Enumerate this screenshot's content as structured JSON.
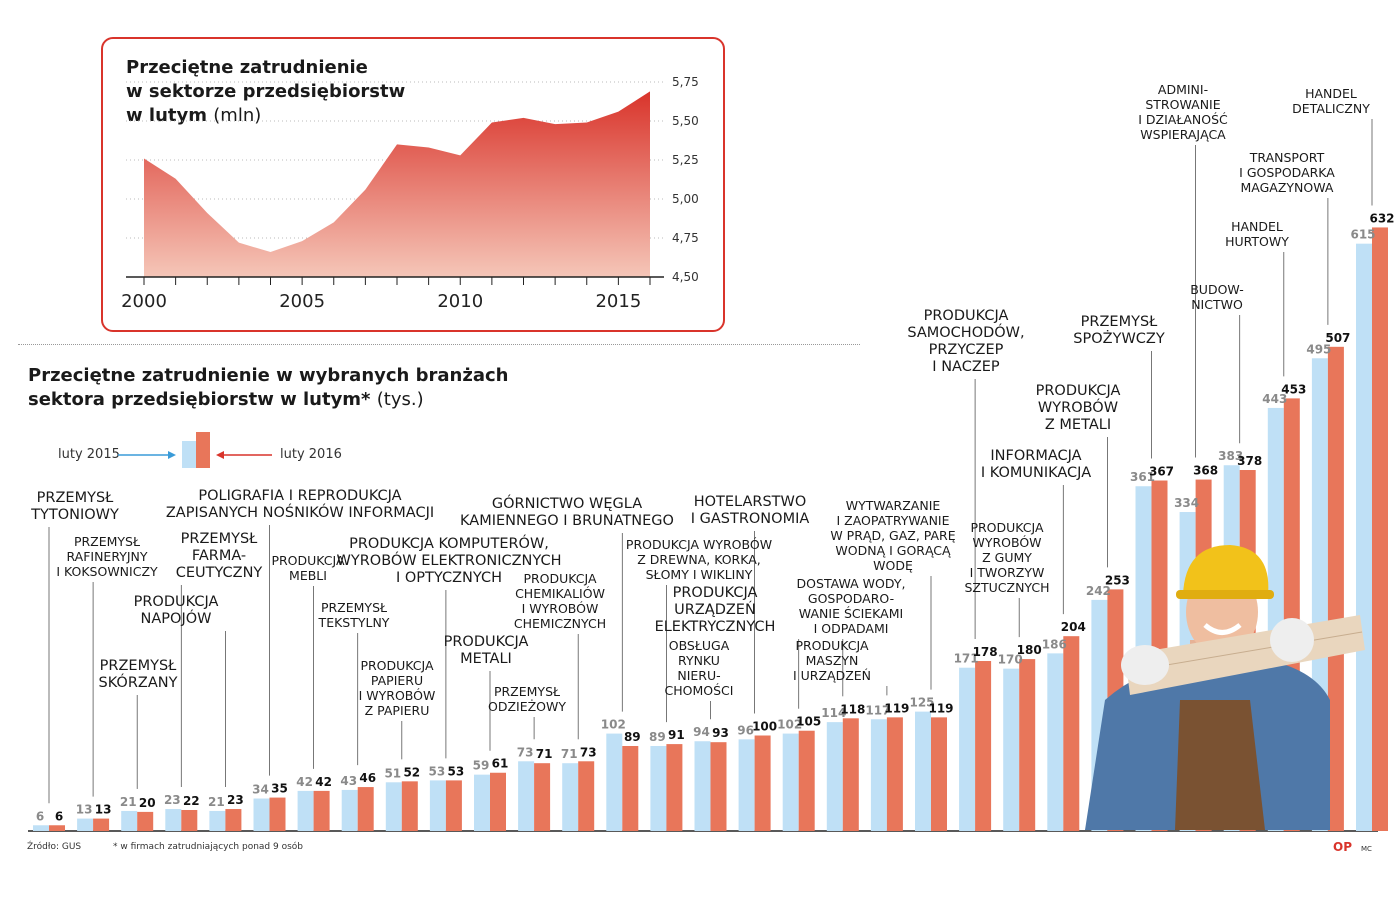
{
  "area_chart": {
    "title_line1": "Przeciętne zatrudnienie",
    "title_line2": "w sektorze przedsiębiorstw",
    "title_line3": "w lutym",
    "unit": "(mln)"
  },
  "bar_chart": {
    "title_line1": "Przeciętne zatrudnienie w wybranych branżach",
    "title_line2": "sektora przedsiębiorstw w lutym*",
    "unit": "(tys.)",
    "legend_2015": "luty 2015",
    "legend_2016": "luty 2016"
  },
  "colors": {
    "red": "#d9342b",
    "blue": "#bfe0f6",
    "orange": "#e8765a",
    "area_top": "#d9342b",
    "area_bottom": "#f5c6b8"
  },
  "footer": {
    "source": "Źródło: GUS",
    "note": "* w firmach zatrudniających ponad 9 osób",
    "logo": "OP",
    "author": "MC"
  },
  "chart_data": [
    {
      "type": "area",
      "title": "Przeciętne zatrudnienie w sektorze przedsiębiorstw w lutym (mln)",
      "x": [
        2000,
        2001,
        2002,
        2003,
        2004,
        2005,
        2006,
        2007,
        2008,
        2009,
        2010,
        2011,
        2012,
        2013,
        2014,
        2015,
        2016
      ],
      "values": [
        5.26,
        5.13,
        4.91,
        4.72,
        4.66,
        4.73,
        4.85,
        5.06,
        5.35,
        5.33,
        5.28,
        5.49,
        5.52,
        5.48,
        5.49,
        5.56,
        5.69
      ],
      "x_ticks": [
        "2000",
        "2005",
        "2010",
        "2015"
      ],
      "y_ticks": [
        "5,75",
        "5,50",
        "5,25",
        "5,00",
        "4,75",
        "4,50"
      ],
      "ylim": [
        4.5,
        5.75
      ]
    },
    {
      "type": "bar",
      "title": "Przeciętne zatrudnienie w wybranych branżach sektora przedsiębiorstw w lutym* (tys.)",
      "series": [
        {
          "name": "luty 2015",
          "values": [
            6,
            13,
            21,
            23,
            21,
            34,
            42,
            43,
            51,
            53,
            59,
            73,
            71,
            102,
            89,
            94,
            96,
            102,
            114,
            117,
            125,
            171,
            170,
            186,
            242,
            361,
            334,
            383,
            443,
            495,
            615
          ]
        },
        {
          "name": "luty 2016",
          "values": [
            6,
            13,
            20,
            22,
            23,
            35,
            42,
            46,
            52,
            53,
            61,
            71,
            73,
            89,
            91,
            93,
            100,
            105,
            118,
            119,
            119,
            178,
            180,
            204,
            253,
            367,
            368,
            378,
            453,
            507,
            632
          ]
        }
      ],
      "categories": [
        "Przemysł tytoniowy",
        "Przemysł rafineryjny i koksowniczy",
        "Przemysł skórzany",
        "Przemysł farmaceutyczny",
        "Produkcja napojów",
        "Poligrafia i reprodukcja zapisanych nośników informacji",
        "Produkcja mebli",
        "Przemysł tekstylny",
        "Produkcja papieru i wyrobów z papieru",
        "Produkcja komputerów, wyrobów elektronicznych i optycznych",
        "Produkcja metali",
        "Przemysł odzieżowy",
        "Produkcja chemikaliów i wyrobów chemicznych",
        "Górnictwo węgla kamiennego i brunatnego",
        "Produkcja wyrobów z drewna, korka, słomy i wikliny",
        "Obsługa rynku nieruchomości",
        "Hotelarstwo i gastronomia",
        "Produkcja urządzeń elektrycznych",
        "Dostawa wody, gospodarowanie ściekami i odpadami",
        "Produkcja maszyn i urządzeń",
        "Wytwarzanie i zaopatrywanie w prąd, gaz, parę wodną i gorącą wodę",
        "Produkcja samochodów, przyczep i naczep",
        "Produkcja wyrobów z gumy i tworzyw sztucznych",
        "Informacja i komunikacja",
        "Produkcja wyrobów z metali",
        "Przemysł spożywczy",
        "Administrowanie i działalność wspierająca",
        "Budownictwo",
        "Handel hurtowy",
        "Transport i gospodarka magazynowa",
        "Handel detaliczny"
      ],
      "ylim": [
        0,
        640
      ]
    }
  ],
  "labels": [
    {
      "lines": [
        "PRZEMYSŁ",
        "TYTONIOWY"
      ]
    },
    {
      "lines": [
        "PRZEMYSŁ",
        "RAFINERYJNY",
        "I KOKSOWNICZY"
      ]
    },
    {
      "lines": [
        "PRZEMYSŁ",
        "SKÓRZANY"
      ]
    },
    {
      "lines": [
        "PRZEMYSŁ",
        "FARMA-",
        "CEUTYCZNY"
      ]
    },
    {
      "lines": [
        "PRODUKCJA",
        "NAPOJÓW"
      ]
    },
    {
      "lines": [
        "POLIGRAFIA I REPRODUKCJA",
        "ZAPISANYCH NOŚNIKÓW INFORMACJI"
      ]
    },
    {
      "lines": [
        "PRODUKCJA",
        "MEBLI"
      ]
    },
    {
      "lines": [
        "PRZEMYSŁ",
        "TEKSTYLNY"
      ]
    },
    {
      "lines": [
        "PRODUKCJA",
        "PAPIERU",
        "I WYROBÓW",
        "Z PAPIERU"
      ]
    },
    {
      "lines": [
        "PRODUKCJA KOMPUTERÓW,",
        "WYROBÓW ELEKTRONICZNYCH",
        "I OPTYCZNYCH"
      ]
    },
    {
      "lines": [
        "PRODUKCJA",
        "METALI"
      ]
    },
    {
      "lines": [
        "PRZEMYSŁ",
        "ODZIEŻOWY"
      ]
    },
    {
      "lines": [
        "PRODUKCJA",
        "CHEMIKALIÓW",
        "I WYROBÓW",
        "CHEMICZNYCH"
      ]
    },
    {
      "lines": [
        "GÓRNICTWO WĘGLA",
        "KAMIENNEGO I BRUNATNEGO"
      ]
    },
    {
      "lines": [
        "PRODUKCJA WYROBÓW",
        "Z DREWNA, KORKA,",
        "SŁOMY I WIKLINY"
      ]
    },
    {
      "lines": [
        "OBSŁUGA",
        "RYNKU",
        "NIERU-",
        "CHOMOŚCI"
      ]
    },
    {
      "lines": [
        "HOTELARSTWO",
        "I GASTRONOMIA"
      ]
    },
    {
      "lines": [
        "PRODUKCJA",
        "URZĄDZEŃ",
        "ELEKTRYCZNYCH"
      ]
    },
    {
      "lines": [
        "DOSTAWA WODY,",
        "GOSPODARO-",
        "WANIE ŚCIEKAMI",
        "I ODPADAMI"
      ]
    },
    {
      "lines": [
        "PRODUKCJA",
        "MASZYN",
        "I URZĄDZEŃ"
      ]
    },
    {
      "lines": [
        "WYTWARZANIE",
        "I ZAOPATRYWANIE",
        "W PRĄD, GAZ, PARĘ",
        "WODNĄ I GORĄCĄ",
        "WODĘ"
      ]
    },
    {
      "lines": [
        "PRODUKCJA",
        "SAMOCHODÓW,",
        "PRZYCZEP",
        "I NACZEP"
      ]
    },
    {
      "lines": [
        "PRODUKCJA",
        "WYROBÓW",
        "Z GUMY",
        "I TWORZYW",
        "SZTUCZNYCH"
      ]
    },
    {
      "lines": [
        "INFORMACJA",
        "I KOMUNIKACJA"
      ]
    },
    {
      "lines": [
        "PRODUKCJA",
        "WYROBÓW",
        "Z METALI"
      ]
    },
    {
      "lines": [
        "PRZEMYSŁ",
        "SPOŻYWCZY"
      ]
    },
    {
      "lines": [
        "ADMINI-",
        "STROWANIE",
        "I DZIAŁANOŚĆ",
        "WSPIERAJĄCA"
      ]
    },
    {
      "lines": [
        "BUDOW-",
        "NICTWO"
      ]
    },
    {
      "lines": [
        "HANDEL",
        "HURTOWY"
      ]
    },
    {
      "lines": [
        "TRANSPORT",
        "I GOSPODARKA",
        "MAGAZYNOWA"
      ]
    },
    {
      "lines": [
        "HANDEL",
        "DETALICZNY"
      ]
    }
  ]
}
